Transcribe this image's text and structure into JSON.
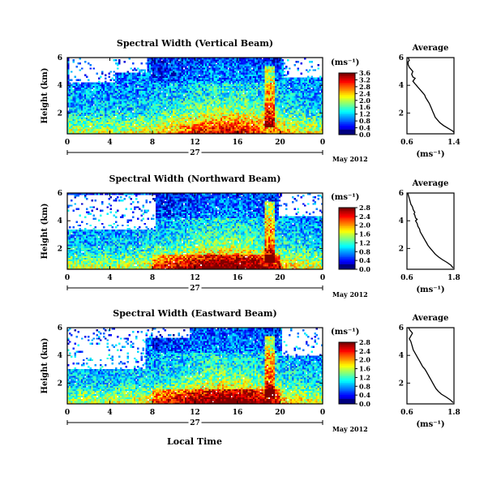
{
  "figure": {
    "xlabel": "Local Time",
    "date_label": "May 2012",
    "day_label": "27",
    "colorbar_unit": "(ms⁻¹)",
    "avg_title": "Average",
    "avg_xlabel": "(ms⁻¹)"
  },
  "chart_data": [
    {
      "type": "heatmap",
      "title": "Spectral Width (Vertical Beam)",
      "ylabel": "Height (km)",
      "xlabel": "Local Time",
      "x_ticks": [
        "0",
        "4",
        "8",
        "12",
        "16",
        "20",
        "0"
      ],
      "y_ticks": [
        "6",
        "4",
        "2"
      ],
      "xlim": [
        0,
        24
      ],
      "ylim": [
        0.5,
        6
      ],
      "colorbar": {
        "unit": "(ms⁻¹)",
        "range": [
          0.0,
          3.6
        ],
        "ticks": [
          "3.6",
          "3.2",
          "2.8",
          "2.4",
          "2.0",
          "1.6",
          "1.2",
          "0.8",
          "0.4",
          "0.0"
        ]
      },
      "colormap": [
        "#000080",
        "#0000ff",
        "#0080ff",
        "#00ffff",
        "#80ff80",
        "#ffff00",
        "#ff8000",
        "#ff0000",
        "#800000"
      ],
      "missing_color": "#ffffff"
    },
    {
      "type": "heatmap",
      "title": "Spectral Width (Northward Beam)",
      "ylabel": "Height (km)",
      "xlabel": "Local Time",
      "x_ticks": [
        "0",
        "4",
        "8",
        "12",
        "16",
        "20",
        "0"
      ],
      "y_ticks": [
        "6",
        "4",
        "2"
      ],
      "xlim": [
        0,
        24
      ],
      "ylim": [
        0.5,
        6
      ],
      "colorbar": {
        "unit": "(ms⁻¹)",
        "range": [
          0.0,
          2.8
        ],
        "ticks": [
          "2.8",
          "2.4",
          "2.0",
          "1.6",
          "1.2",
          "0.8",
          "0.4",
          "0.0"
        ]
      },
      "colormap": [
        "#000080",
        "#0000ff",
        "#0080ff",
        "#00ffff",
        "#80ff80",
        "#ffff00",
        "#ff8000",
        "#ff0000",
        "#800000"
      ],
      "missing_color": "#ffffff"
    },
    {
      "type": "heatmap",
      "title": "Spectral Width (Eastward Beam)",
      "ylabel": "Height (km)",
      "xlabel": "Local Time",
      "x_ticks": [
        "0",
        "4",
        "8",
        "12",
        "16",
        "20",
        "0"
      ],
      "y_ticks": [
        "6",
        "4",
        "2"
      ],
      "xlim": [
        0,
        24
      ],
      "ylim": [
        0.5,
        6
      ],
      "colorbar": {
        "unit": "(ms⁻¹)",
        "range": [
          0.0,
          2.8
        ],
        "ticks": [
          "2.8",
          "2.4",
          "2.0",
          "1.6",
          "1.2",
          "0.8",
          "0.4",
          "0.0"
        ]
      },
      "colormap": [
        "#000080",
        "#0000ff",
        "#0080ff",
        "#00ffff",
        "#80ff80",
        "#ffff00",
        "#ff8000",
        "#ff0000",
        "#800000"
      ],
      "missing_color": "#ffffff"
    },
    {
      "type": "line",
      "title": "Average",
      "xlabel": "(ms⁻¹)",
      "xlim": [
        0.6,
        1.4
      ],
      "ylim": [
        0.5,
        6
      ],
      "x_ticks": [
        "0.6",
        "1.4"
      ],
      "y_ticks": [
        "6",
        "4",
        "2"
      ],
      "x": [
        1.4,
        1.38,
        1.3,
        1.22,
        1.16,
        1.12,
        1.08,
        1.06,
        1.04,
        1.02,
        1.0,
        0.98,
        0.95,
        0.92,
        0.9,
        0.86,
        0.82,
        0.78,
        0.76,
        0.74,
        0.72,
        0.7,
        0.72,
        0.74,
        0.7,
        0.68,
        0.7,
        0.68,
        0.66,
        0.64,
        0.62,
        0.62,
        0.64,
        0.62
      ],
      "y": [
        0.6,
        0.7,
        0.9,
        1.1,
        1.3,
        1.5,
        1.7,
        1.9,
        2.1,
        2.3,
        2.5,
        2.7,
        2.9,
        3.1,
        3.3,
        3.5,
        3.7,
        3.9,
        4.0,
        4.1,
        4.2,
        4.3,
        4.4,
        4.5,
        4.6,
        4.8,
        5.0,
        5.1,
        5.2,
        5.3,
        5.5,
        5.7,
        5.8,
        6.0
      ]
    },
    {
      "type": "line",
      "title": "Average",
      "xlabel": "(ms⁻¹)",
      "xlim": [
        0.6,
        1.8
      ],
      "ylim": [
        0.5,
        6
      ],
      "x_ticks": [
        "0.6",
        "1.8"
      ],
      "y_ticks": [
        "6",
        "4",
        "2"
      ],
      "x": [
        1.78,
        1.72,
        1.62,
        1.5,
        1.4,
        1.32,
        1.26,
        1.2,
        1.14,
        1.1,
        1.06,
        1.02,
        0.98,
        0.94,
        0.92,
        0.9,
        0.88,
        0.86,
        0.84,
        0.82,
        0.86,
        0.82,
        0.8,
        0.78,
        0.8,
        0.76,
        0.74,
        0.7,
        0.68,
        0.66,
        0.64,
        0.62
      ],
      "y": [
        0.6,
        0.8,
        1.0,
        1.2,
        1.4,
        1.6,
        1.8,
        2.0,
        2.2,
        2.4,
        2.6,
        2.8,
        3.0,
        3.2,
        3.4,
        3.5,
        3.6,
        3.8,
        3.9,
        4.0,
        4.1,
        4.2,
        4.4,
        4.5,
        4.6,
        4.8,
        5.0,
        5.2,
        5.4,
        5.6,
        5.8,
        6.0
      ]
    },
    {
      "type": "line",
      "title": "Average",
      "xlabel": "(ms⁻¹)",
      "xlim": [
        0.6,
        1.8
      ],
      "ylim": [
        0.5,
        6
      ],
      "x_ticks": [
        "0.6",
        "1.8"
      ],
      "y_ticks": [
        "6",
        "4",
        "2"
      ],
      "x": [
        1.78,
        1.7,
        1.6,
        1.48,
        1.4,
        1.34,
        1.3,
        1.26,
        1.22,
        1.18,
        1.14,
        1.1,
        1.06,
        1.0,
        0.96,
        0.92,
        0.88,
        0.84,
        0.8,
        0.76,
        0.74,
        0.72,
        0.7,
        0.68,
        0.66,
        0.7,
        0.74,
        0.68,
        0.66,
        0.64
      ],
      "y": [
        0.6,
        0.8,
        1.0,
        1.2,
        1.4,
        1.6,
        1.8,
        2.0,
        2.2,
        2.4,
        2.6,
        2.8,
        3.0,
        3.2,
        3.4,
        3.6,
        3.8,
        4.0,
        4.2,
        4.4,
        4.6,
        4.8,
        5.0,
        5.1,
        5.2,
        5.4,
        5.6,
        5.8,
        5.9,
        6.0
      ]
    }
  ]
}
